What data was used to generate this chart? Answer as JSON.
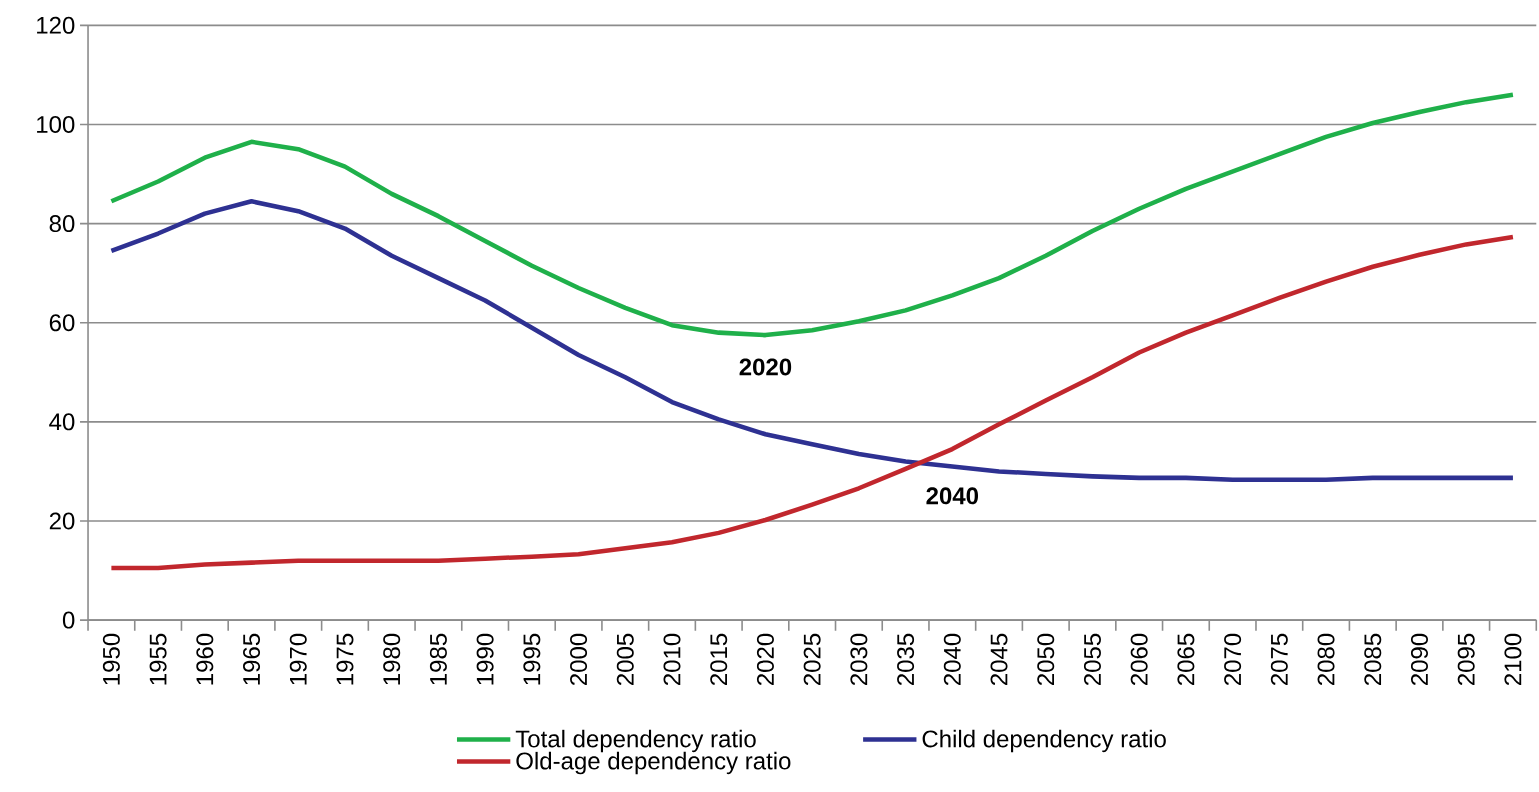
{
  "chart_data": {
    "type": "line",
    "categories": [
      "1950",
      "1955",
      "1960",
      "1965",
      "1970",
      "1975",
      "1980",
      "1985",
      "1990",
      "1995",
      "2000",
      "2005",
      "2010",
      "2015",
      "2020",
      "2025",
      "2030",
      "2035",
      "2040",
      "2045",
      "2050",
      "2055",
      "2060",
      "2065",
      "2070",
      "2075",
      "2080",
      "2085",
      "2090",
      "2095",
      "2100"
    ],
    "series": [
      {
        "name": "Total dependency ratio",
        "color": "#1fb04a",
        "values": [
          84.5,
          88.5,
          93.3,
          96.5,
          95,
          91.5,
          86,
          81.5,
          76.5,
          71.5,
          67,
          63,
          59.5,
          58,
          57.5,
          58.5,
          60.3,
          62.5,
          65.5,
          69,
          73.5,
          78.5,
          83,
          87,
          90.5,
          94,
          97.5,
          100.3,
          102.5,
          104.5,
          106
        ]
      },
      {
        "name": "Child dependency ratio",
        "color": "#2e3192",
        "values": [
          74.5,
          78,
          82,
          84.5,
          82.5,
          79,
          73.5,
          69,
          64.5,
          59,
          53.5,
          49,
          44,
          40.5,
          37.5,
          35.5,
          33.5,
          32,
          31,
          30,
          29.5,
          29,
          28.7,
          28.7,
          28.3,
          28.3,
          28.3,
          28.7,
          28.7,
          28.7,
          28.7
        ]
      },
      {
        "name": "Old-age dependency ratio",
        "color": "#c1272d",
        "values": [
          10.5,
          10.5,
          11.2,
          11.6,
          12,
          12,
          12,
          12,
          12.4,
          12.8,
          13.3,
          14.5,
          15.7,
          17.6,
          20.2,
          23.3,
          26.6,
          30.5,
          34.5,
          39.5,
          44.3,
          49,
          54,
          58,
          61.5,
          65,
          68.3,
          71.3,
          73.7,
          75.8,
          77.3
        ]
      }
    ],
    "ylim": [
      0,
      120
    ],
    "yticks": [
      0,
      20,
      40,
      60,
      80,
      100,
      120
    ],
    "grid": "y",
    "legend": "bottom",
    "marker": "none",
    "line_style": "solid",
    "annotations": [
      {
        "text": "2020",
        "x": "2020",
        "y": 57.5
      },
      {
        "text": "2040",
        "x": "2040",
        "y": 31.5
      }
    ]
  }
}
